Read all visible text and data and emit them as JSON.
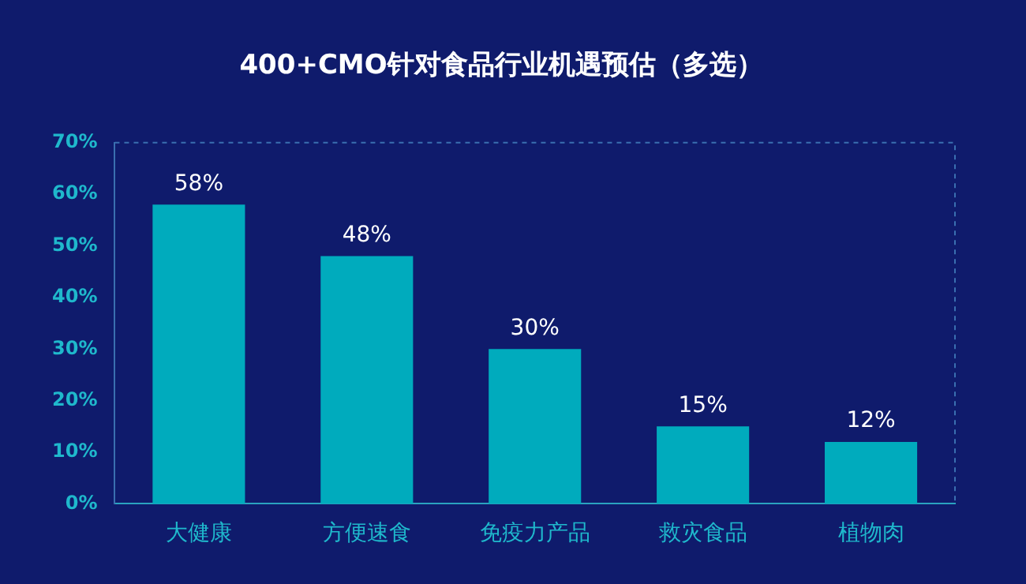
{
  "chart_data": {
    "type": "bar",
    "title": "400+CMO针对食品行业机遇预估（多选）",
    "categories": [
      "大健康",
      "方便速食",
      "免疫力产品",
      "救灾食品",
      "植物肉"
    ],
    "values": [
      58,
      48,
      30,
      15,
      12
    ],
    "value_labels": [
      "58%",
      "48%",
      "30%",
      "15%",
      "12%"
    ],
    "color": "#00abbd",
    "ylim": [
      0,
      70
    ],
    "yticks": [
      {
        "value": 0,
        "label": "0%"
      },
      {
        "value": 10,
        "label": "10%"
      },
      {
        "value": 20,
        "label": "20%"
      },
      {
        "value": 30,
        "label": "30%"
      },
      {
        "value": 40,
        "label": "40%"
      },
      {
        "value": 50,
        "label": "50%"
      },
      {
        "value": 60,
        "label": "60%"
      },
      {
        "value": 70,
        "label": "70%"
      }
    ],
    "grid": false,
    "legend": false
  }
}
